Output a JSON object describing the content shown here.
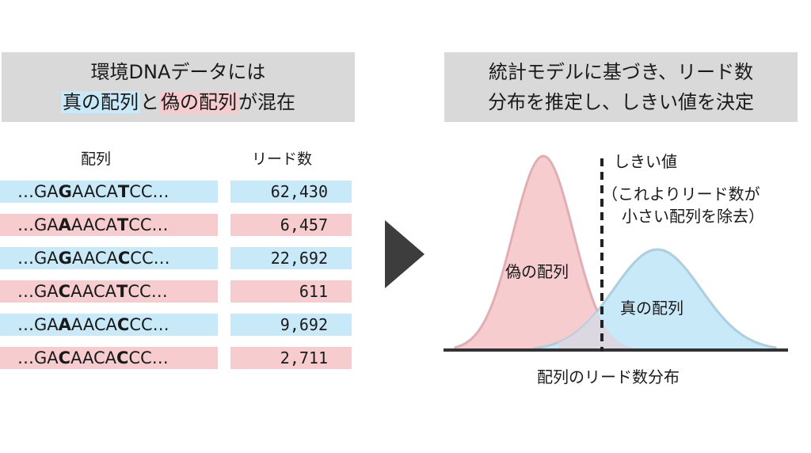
{
  "left_title": {
    "line1": "環境DNAデータには",
    "true_label": "真の配列",
    "connector": "と",
    "false_label": "偽の配列",
    "suffix": "が混在"
  },
  "right_title": {
    "line1": "統計モデルに基づき、リード数",
    "line2": "分布を推定し、しきい値を決定"
  },
  "table": {
    "seq_header": "配列",
    "count_header": "リード数",
    "rows": [
      {
        "pre": "…GA",
        "v1": "G",
        "mid": "AACA",
        "v2": "T",
        "post": "CC…",
        "count": "62,430",
        "kind": "true"
      },
      {
        "pre": "…GA",
        "v1": "A",
        "mid": "AACA",
        "v2": "T",
        "post": "CC…",
        "count": "6,457",
        "kind": "false"
      },
      {
        "pre": "…GA",
        "v1": "G",
        "mid": "AACA",
        "v2": "C",
        "post": "CC…",
        "count": "22,692",
        "kind": "true"
      },
      {
        "pre": "…GA",
        "v1": "C",
        "mid": "AACA",
        "v2": "T",
        "post": "CC…",
        "count": "611",
        "kind": "false"
      },
      {
        "pre": "…GA",
        "v1": "A",
        "mid": "AACA",
        "v2": "C",
        "post": "CC…",
        "count": "9,692",
        "kind": "true"
      },
      {
        "pre": "…GA",
        "v1": "C",
        "mid": "AACA",
        "v2": "C",
        "post": "CC…",
        "count": "2,711",
        "kind": "false"
      }
    ]
  },
  "distribution": {
    "threshold_label": "しきい値",
    "threshold_note_line1": "（これよりリード数が",
    "threshold_note_line2": "小さい配列を除去）",
    "false_label": "偽の配列",
    "true_label": "真の配列",
    "x_label": "配列のリード数分布"
  },
  "colors": {
    "true_fill": "#c8e9f8",
    "true_stroke": "#a9cfe0",
    "false_fill": "#f6cccf",
    "false_stroke": "#e2aeb3",
    "title_bg": "#d9d9d9",
    "arrow": "#3d3d3d"
  }
}
